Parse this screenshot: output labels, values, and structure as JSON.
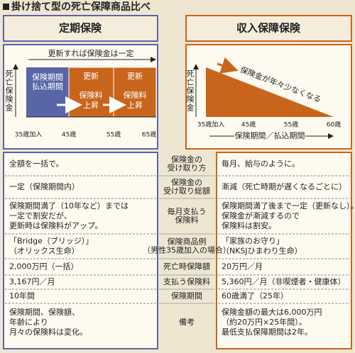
{
  "title": "掛け捨て型の死亡保障商品比べ",
  "left": {
    "heading": "定期保険",
    "diagram": {
      "top_label": "更新すれば保険金は一定",
      "y_label": "死亡保険金",
      "blocks": [
        [
          "保険期間",
          "払込期間"
        ],
        [
          "更新",
          "保険料",
          "上昇"
        ],
        [
          "更新",
          "保険料",
          "上昇"
        ]
      ],
      "x_labels": [
        "35歳加入",
        "45歳",
        "55歳",
        "65歳"
      ]
    }
  },
  "right": {
    "heading": "収入保障保険",
    "diagram": {
      "y_label": "死亡保険金",
      "arrow_label": "保険金が年々少なくなる",
      "x_labels": [
        "35歳加入",
        "45歳",
        "55歳",
        "60歳"
      ],
      "period_label": "保険期間／払込期間"
    }
  },
  "rows": [
    {
      "label": [
        "保険金の",
        "受け取り方"
      ],
      "left": [
        "全額を一括で。"
      ],
      "right": [
        "毎月、給与のように。"
      ]
    },
    {
      "label": [
        "保険金の",
        "受け取り総額"
      ],
      "left": [
        "一定（保険期間内）"
      ],
      "right": [
        "漸減（死亡時期が遅くなるごとに）"
      ]
    },
    {
      "label": [
        "毎月支払う",
        "保険料"
      ],
      "left": [
        "保険期間満了（10年など）までは",
        "一定で割安だが、",
        "更新時は保険料がアップ。"
      ],
      "right": [
        "保険期間満了後まで一定（更新なし）。",
        "保険金が漸減するので",
        "保険料は割安。"
      ]
    },
    {
      "label": [
        "保険商品例",
        "（男性35歳加入の場合）"
      ],
      "left": [
        "「Bridge（ブリッジ）」",
        "（オリックス生命）"
      ],
      "right": [
        "「家族のお守り」",
        "（NKSJひまわり生命）"
      ]
    },
    {
      "label": [
        "死亡時保障額"
      ],
      "left": [
        "2,000万円（一括）"
      ],
      "right": [
        "20万円／月"
      ]
    },
    {
      "label": [
        "支払う保険料"
      ],
      "left": [
        "3,167円／月"
      ],
      "right": [
        "5,360円／月（非喫煙者・健康体）"
      ]
    },
    {
      "label": [
        "保険期間"
      ],
      "left": [
        "10年間"
      ],
      "right": [
        "60歳満了（25年）"
      ]
    },
    {
      "label": [
        "備考"
      ],
      "left": [
        "保険期間、保険額、",
        "年齢により",
        "月々の保険料は変化。"
      ],
      "right": [
        "保険金額の最大は6,000万円",
        "（約20万円×25年間）。",
        "最低支払保障期間は2年。"
      ]
    }
  ]
}
